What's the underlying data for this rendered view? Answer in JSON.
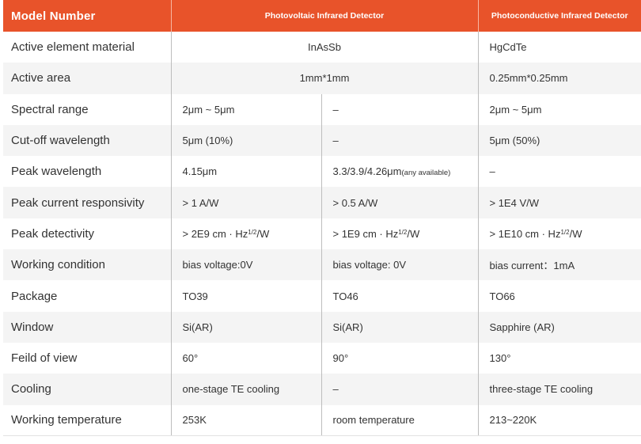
{
  "header": {
    "model": "Model Number",
    "photovoltaic": "Photovoltaic Infrared Detector",
    "photoconductive": "Photoconductive  Infrared Detector"
  },
  "rows": {
    "material": {
      "label": "Active element material",
      "pv": "InAsSb",
      "pc": "HgCdTe"
    },
    "area": {
      "label": "Active area",
      "pv": "1mm*1mm",
      "pc": "0.25mm*0.25mm"
    },
    "spectral": {
      "label": "Spectral range",
      "a": "2μm ~ 5μm",
      "b": "–",
      "c": "2μm ~ 5μm"
    },
    "cutoff": {
      "label": "Cut-off wavelength",
      "a": "5μm (10%)",
      "b": "–",
      "c": "5μm (50%)"
    },
    "peak_wl": {
      "label": "Peak wavelength",
      "a": "4.15μm",
      "b": "3.3/3.9/4.26μm",
      "b_note": "(any available)",
      "c": "–"
    },
    "responsivity": {
      "label": "Peak current responsivity",
      "a": "> 1 A/W",
      "b": "> 0.5 A/W",
      "c": "> 1E4 V/W"
    },
    "detectivity": {
      "label": "Peak detectivity",
      "a": "> 2E9 cm · Hz",
      "b": "> 1E9 cm · Hz",
      "c": "> 1E10 cm · Hz",
      "exp": "1/2",
      "unit": "/W"
    },
    "working": {
      "label": "Working condition",
      "a": "bias voltage:0V",
      "b": "bias voltage: 0V",
      "c": "bias current：1mA"
    },
    "package": {
      "label": "Package",
      "a": "TO39",
      "b": "TO46",
      "c": "TO66"
    },
    "window": {
      "label": "Window",
      "a": "Si(AR)",
      "b": "Si(AR)",
      "c": "Sapphire (AR)"
    },
    "fov": {
      "label": "Feild of view",
      "a": "60°",
      "b": "90°",
      "c": "130°"
    },
    "cooling": {
      "label": "Cooling",
      "a": "one-stage TE cooling",
      "b": "–",
      "c": "three-stage TE cooling"
    },
    "temperature": {
      "label": "Working temperature",
      "a": "253K",
      "b": "room temperature",
      "c": "213~220K"
    }
  },
  "colors": {
    "header_bg": "#e8532a",
    "stripe": "#f4f4f4",
    "text": "#333333"
  }
}
